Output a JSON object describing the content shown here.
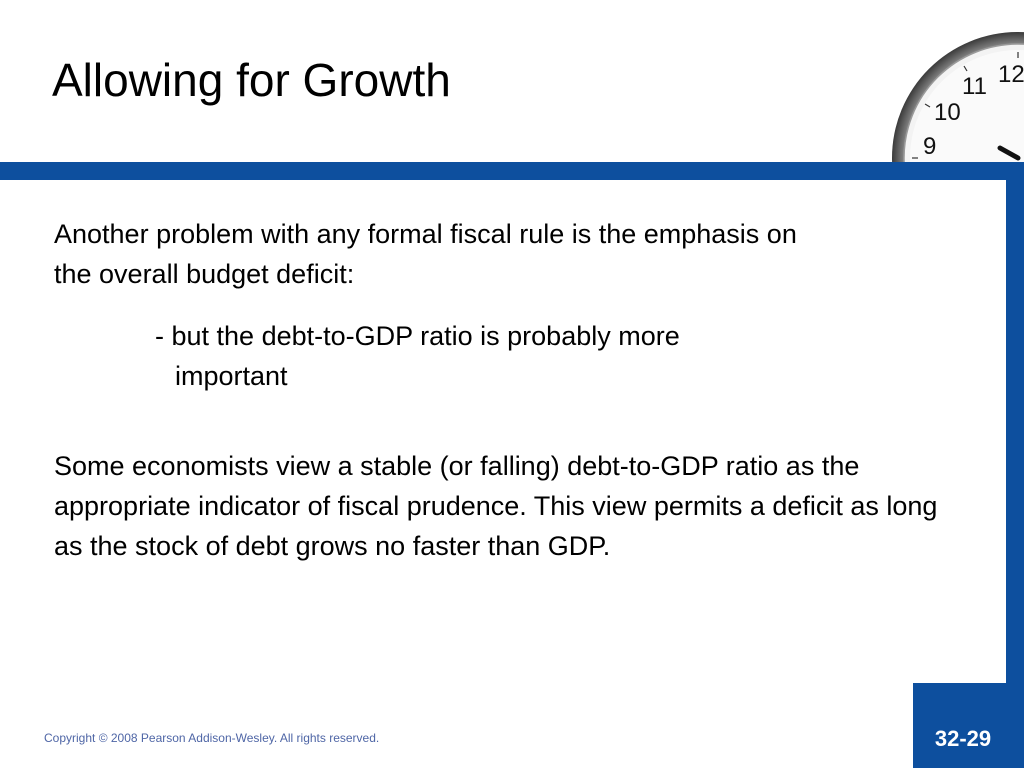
{
  "slide": {
    "title": "Allowing for Growth",
    "paragraph1": "Another problem with any formal fiscal rule is the emphasis on the overall budget deficit:",
    "bullet_line1": "- but the debt-to-GDP ratio is probably more",
    "bullet_line2": "important",
    "paragraph2": "Some economists view a stable (or falling) debt-to-GDP ratio as the appropriate indicator of fiscal prudence. This view permits a deficit as long as the stock of debt grows no faster than GDP.",
    "copyright": "Copyright © 2008 Pearson Addison-Wesley. All rights reserved.",
    "page_number": "32-29"
  },
  "clock": {
    "numerals": [
      "12",
      "11",
      "10",
      "9"
    ]
  },
  "colors": {
    "accent_blue": "#0d4f9e",
    "copyright_text": "#4f66a6"
  },
  "icons": {
    "clock": "wall-clock-icon"
  }
}
